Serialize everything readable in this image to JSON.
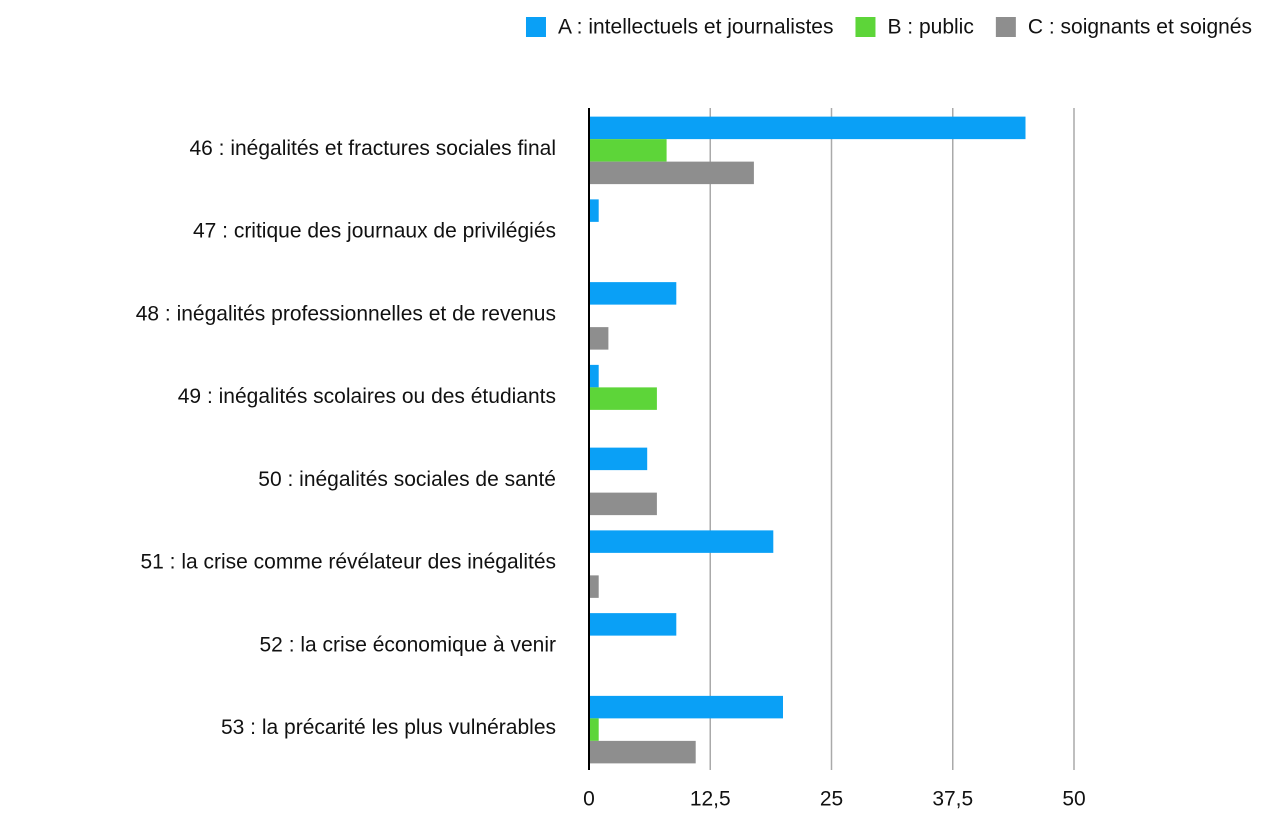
{
  "chart_data": {
    "type": "bar",
    "orientation": "horizontal",
    "categories": [
      "46 : inégalités et fractures sociales final",
      "47 : critique des journaux de privilégiés",
      "48 : inégalités professionnelles et de revenus",
      "49 : inégalités scolaires ou des étudiants",
      "50 : inégalités sociales de santé",
      "51 : la crise comme révélateur des inégalités",
      "52 : la crise économique à venir",
      "53 : la précarité les plus vulnérables"
    ],
    "series": [
      {
        "name": "A : intellectuels et journalistes",
        "color": "#0aa0f6",
        "values": [
          45,
          1,
          9,
          1,
          6,
          19,
          9,
          20
        ]
      },
      {
        "name": "B : public",
        "color": "#5dd539",
        "values": [
          8,
          0,
          0,
          7,
          0,
          0,
          0,
          1
        ]
      },
      {
        "name": "C : soignants et soignés",
        "color": "#8e8e8e",
        "values": [
          17,
          0,
          2,
          0,
          7,
          1,
          0,
          11
        ]
      }
    ],
    "xlim": [
      0,
      50
    ],
    "xticks": [
      0,
      {
        "value": 12.5,
        "label": "12,5"
      },
      25,
      {
        "value": 37.5,
        "label": "37,5"
      },
      50
    ],
    "grid": true,
    "legend": "top"
  }
}
